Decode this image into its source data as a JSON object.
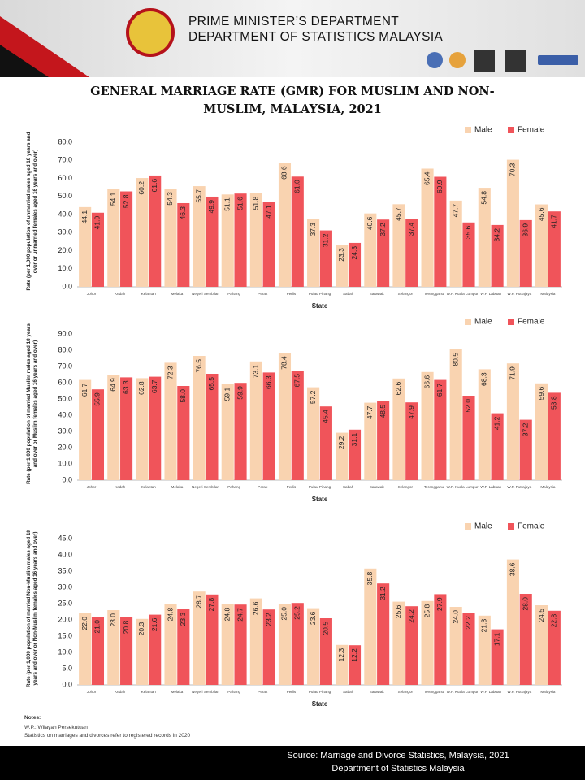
{
  "header": {
    "line1": "PRIME MINISTER’S DEPARTMENT",
    "line2": "DEPARTMENT OF STATISTICS MALAYSIA"
  },
  "title": "GENERAL MARRIAGE RATE (GMR) FOR MUSLIM AND NON-MUSLIM, MALAYSIA, 2021",
  "chart_data": [
    {
      "type": "bar",
      "y_label": "Rate (per 1,000 population of unmarried males aged 18 years and over or unmarried females aged 16 years and over)",
      "x_label": "State",
      "categories": [
        "Johor",
        "Kedah",
        "Kelantan",
        "Melaka",
        "Negeri Sembilan",
        "Pahang",
        "Perak",
        "Perlis",
        "Pulau Pinang",
        "Sabah",
        "Sarawak",
        "Selangor",
        "Terengganu",
        "W.P. Kuala Lumpur",
        "W.P. Labuan",
        "W.P. Putrajaya",
        "Malaysia"
      ],
      "series": [
        {
          "name": "Male",
          "color": "#f9d3b0",
          "values": [
            44.1,
            54.1,
            60.2,
            54.3,
            55.7,
            51.1,
            51.8,
            68.6,
            37.3,
            23.3,
            40.6,
            45.7,
            65.4,
            47.7,
            54.8,
            70.3,
            45.6
          ]
        },
        {
          "name": "Female",
          "color": "#f0545a",
          "values": [
            41.0,
            52.8,
            61.6,
            46.3,
            49.9,
            51.6,
            47.1,
            61.0,
            31.2,
            24.3,
            37.2,
            37.4,
            60.9,
            35.6,
            34.2,
            36.9,
            41.7
          ],
          "value_labels": [
            "41.0",
            "52.8",
            "61.6",
            "46.3",
            "49.9",
            "51.6",
            "47.1",
            "61.0",
            "31.2",
            "24.3",
            "37.2",
            "37.4",
            "60.9",
            "35.6",
            "34.2",
            "36.9",
            "41.7"
          ]
        }
      ],
      "ylim": [
        0,
        80
      ],
      "yticks": [
        {
          "value": 0,
          "label": "0.0"
        },
        {
          "value": 10,
          "label": "10.0"
        },
        {
          "value": 20,
          "label": "20.0"
        },
        {
          "value": 30,
          "label": "30.0"
        },
        {
          "value": 40,
          "label": "40.0"
        },
        {
          "value": 50,
          "label": "50.0"
        },
        {
          "value": 60,
          "label": "60.0"
        },
        {
          "value": 70,
          "label": "70.0"
        },
        {
          "value": 80,
          "label": "80.0"
        }
      ]
    },
    {
      "type": "bar",
      "y_label": "Rate (per 1,000 population of married Muslim males aged 18 years and over or Muslim females aged 16 years and over)",
      "x_label": "State",
      "categories": [
        "Johor",
        "Kedah",
        "Kelantan",
        "Melaka",
        "Negeri Sembilan",
        "Pahang",
        "Perak",
        "Perlis",
        "Pulau Pinang",
        "Sabah",
        "Sarawak",
        "Selangor",
        "Terengganu",
        "W.P. Kuala Lumpur",
        "W.P. Labuan",
        "W.P. Putrajaya",
        "Malaysia"
      ],
      "series": [
        {
          "name": "Male",
          "color": "#f9d3b0",
          "values": [
            61.7,
            64.9,
            62.8,
            72.3,
            76.5,
            59.1,
            73.1,
            78.4,
            57.2,
            29.2,
            47.7,
            62.6,
            66.6,
            80.5,
            68.3,
            71.9,
            59.6
          ]
        },
        {
          "name": "Female",
          "color": "#f0545a",
          "values": [
            55.9,
            63.3,
            63.7,
            58.0,
            65.5,
            59.9,
            66.3,
            67.5,
            45.4,
            31.1,
            48.5,
            47.9,
            61.7,
            52.0,
            41.2,
            37.2,
            53.8
          ],
          "value_labels": [
            "55.9",
            "63.3",
            "63.7",
            "58.0",
            "65.5",
            "59.9",
            "66.3",
            "67.5",
            "45.4",
            "31.1",
            "48.5",
            "47.9",
            "61.7",
            "52.0",
            "41.2",
            "37.2",
            "53.8"
          ]
        }
      ],
      "ylim": [
        0,
        90
      ],
      "yticks": [
        {
          "value": 0,
          "label": "0.0"
        },
        {
          "value": 10,
          "label": "10.0"
        },
        {
          "value": 20,
          "label": "20.0"
        },
        {
          "value": 30,
          "label": "30.0"
        },
        {
          "value": 40,
          "label": "40.0"
        },
        {
          "value": 50,
          "label": "50.0"
        },
        {
          "value": 60,
          "label": "60.0"
        },
        {
          "value": 70,
          "label": "70.0"
        },
        {
          "value": 80,
          "label": "80.0"
        },
        {
          "value": 90,
          "label": "90.0"
        }
      ]
    },
    {
      "type": "bar",
      "y_label": "Rate (per 1,000 population of married Non-Muslim males aged 18 years and over or Non-Muslim females aged 16 years and over)",
      "x_label": "State",
      "categories": [
        "Johor",
        "Kedah",
        "Kelantan",
        "Melaka",
        "Negeri Sembilan",
        "Pahang",
        "Perak",
        "Perlis",
        "Pulau Pinang",
        "Sabah",
        "Sarawak",
        "Selangor",
        "Terengganu",
        "W.P. Kuala Lumpur",
        "W.P. Labuan",
        "W.P. Putrajaya",
        "Malaysia"
      ],
      "series": [
        {
          "name": "Male",
          "color": "#f9d3b0",
          "values": [
            22.0,
            23.0,
            20.3,
            24.8,
            28.7,
            24.8,
            26.6,
            25.0,
            23.6,
            12.3,
            35.8,
            25.6,
            25.8,
            24.0,
            21.3,
            38.6,
            24.5
          ],
          "value_labels": [
            "22.0",
            "23.0",
            "20.3",
            "24.8",
            "28.7",
            "24.8",
            "26.6",
            "25.0",
            "23.6",
            "12.3",
            "35.8",
            "25.6",
            "25.8",
            "24.0",
            "21.3",
            "38.6",
            "24.5"
          ]
        },
        {
          "name": "Female",
          "color": "#f0545a",
          "values": [
            21.0,
            20.8,
            21.6,
            23.3,
            27.8,
            24.7,
            23.2,
            25.2,
            20.5,
            12.2,
            31.2,
            24.2,
            27.9,
            22.2,
            17.1,
            28.0,
            22.8
          ],
          "value_labels": [
            "21.0",
            "20.8",
            "21.6",
            "23.3",
            "27.8",
            "24.7",
            "23.2",
            "25.2",
            "20.5",
            "12.2",
            "31.2",
            "24.2",
            "27.9",
            "22.2",
            "17.1",
            "28.0",
            "22.8"
          ]
        }
      ],
      "ylim": [
        0,
        45
      ],
      "yticks": [
        {
          "value": 0,
          "label": "0.0"
        },
        {
          "value": 5,
          "label": "5.0"
        },
        {
          "value": 10,
          "label": "10.0"
        },
        {
          "value": 15,
          "label": "15.0"
        },
        {
          "value": 20,
          "label": "20.0"
        },
        {
          "value": 25,
          "label": "25.0"
        },
        {
          "value": 30,
          "label": "30.0"
        },
        {
          "value": 35,
          "label": "35.0"
        },
        {
          "value": 40,
          "label": "40.0"
        },
        {
          "value": 45,
          "label": "45.0"
        }
      ]
    }
  ],
  "notes": {
    "heading": "Notes:",
    "line1": "W.P.: Wilayah Persekutuan",
    "line2": "Statistics on marriages and divorces refer to registered records in 2020"
  },
  "source": {
    "line1": "Source: Marriage and Divorce Statistics, Malaysia, 2021",
    "line2": "Department of Statistics Malaysia"
  }
}
